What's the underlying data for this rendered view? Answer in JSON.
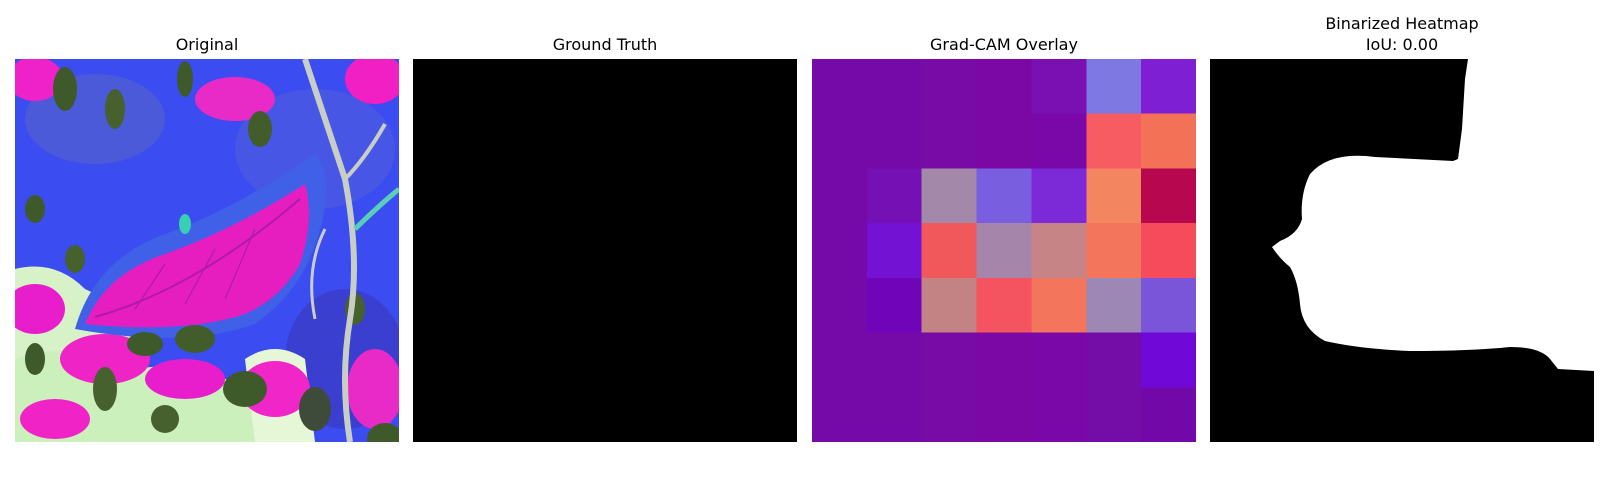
{
  "panels": [
    {
      "title": "Original"
    },
    {
      "title": "Ground Truth"
    },
    {
      "title": "Grad-CAM Overlay"
    },
    {
      "title": "Binarized Heatmap",
      "subtitle": "IoU: 0.00"
    }
  ],
  "gradcam_grid": {
    "rows": 7,
    "cols": 7,
    "colors": [
      [
        "#760aa8",
        "#760aa8",
        "#780aa6",
        "#7b08a4",
        "#7a0fb2",
        "#7e79e2",
        "#7f1fd4"
      ],
      [
        "#760aa8",
        "#760aa8",
        "#780aa6",
        "#7b08a4",
        "#7a08a8",
        "#f65c62",
        "#f37257"
      ],
      [
        "#760aa8",
        "#7410b4",
        "#a488a9",
        "#7a5ee0",
        "#7c2ad8",
        "#f38660",
        "#b7074e"
      ],
      [
        "#760aa8",
        "#7412d4",
        "#f1585c",
        "#a685aa",
        "#c78486",
        "#f3765c",
        "#f54b5b"
      ],
      [
        "#760aa8",
        "#7004b8",
        "#c38283",
        "#f45360",
        "#f3765c",
        "#9d88b5",
        "#7a55da"
      ],
      [
        "#760aa8",
        "#760aa8",
        "#780aa6",
        "#7b08a4",
        "#7a08a8",
        "#740ca8",
        "#7008d8"
      ],
      [
        "#760aa8",
        "#760aa8",
        "#780aa6",
        "#7b08a4",
        "#7a08a8",
        "#740ca8",
        "#7308a8"
      ]
    ]
  }
}
